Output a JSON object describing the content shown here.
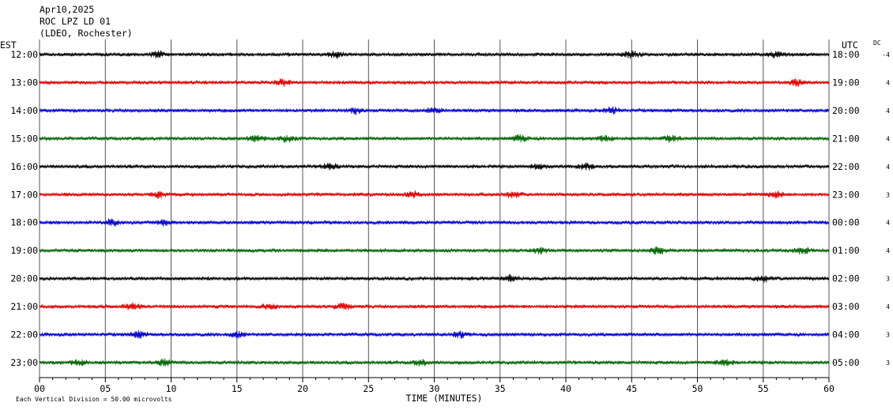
{
  "header": {
    "date": "Apr10,2025",
    "station": "ROC LPZ LD 01",
    "network": "(LDEO, Rochester)"
  },
  "chart_data": {
    "type": "line",
    "title": "",
    "xlabel": "TIME (MINUTES)",
    "xlim": [
      0,
      60
    ],
    "x_ticks": [
      "00",
      "05",
      "10",
      "15",
      "20",
      "25",
      "30",
      "35",
      "40",
      "45",
      "50",
      "55",
      "60"
    ],
    "left_axis_label": "EST",
    "right_axis_label": "UTC",
    "dc_label": "DC",
    "grid": "vertical lines every 5 minutes",
    "rows": [
      {
        "est": "12:00",
        "utc": "18:00",
        "dc": "-4",
        "color": "#000000"
      },
      {
        "est": "13:00",
        "utc": "19:00",
        "dc": "4",
        "color": "#dd0000"
      },
      {
        "est": "14:00",
        "utc": "20:00",
        "dc": "4",
        "color": "#0000cc"
      },
      {
        "est": "15:00",
        "utc": "21:00",
        "dc": "4",
        "color": "#006400"
      },
      {
        "est": "16:00",
        "utc": "22:00",
        "dc": "4",
        "color": "#000000"
      },
      {
        "est": "17:00",
        "utc": "23:00",
        "dc": "3",
        "color": "#dd0000"
      },
      {
        "est": "18:00",
        "utc": "00:00",
        "dc": "4",
        "color": "#0000cc"
      },
      {
        "est": "19:00",
        "utc": "01:00",
        "dc": "4",
        "color": "#006400"
      },
      {
        "est": "20:00",
        "utc": "02:00",
        "dc": "3",
        "color": "#000000"
      },
      {
        "est": "21:00",
        "utc": "03:00",
        "dc": "4",
        "color": "#dd0000"
      },
      {
        "est": "22:00",
        "utc": "04:00",
        "dc": "3",
        "color": "#0000cc"
      },
      {
        "est": "23:00",
        "utc": "05:00",
        "dc": "3",
        "color": "#006400"
      }
    ],
    "scale_note": "Each Vertical Division =   50.00 microvolts",
    "bursts_minutes": [
      [
        9,
        22.5,
        45,
        56
      ],
      [
        18.5,
        57.5
      ],
      [
        24,
        30,
        43.5
      ],
      [
        16.5,
        18.8,
        36.5,
        43,
        48
      ],
      [
        22,
        38,
        41.5
      ],
      [
        9,
        28.5,
        36,
        56
      ],
      [
        5.5,
        9.5
      ],
      [
        38,
        47,
        58
      ],
      [
        35.8,
        55
      ],
      [
        7,
        17.5,
        23
      ],
      [
        7.5,
        15,
        32
      ],
      [
        3,
        9.5,
        29,
        52
      ]
    ]
  }
}
